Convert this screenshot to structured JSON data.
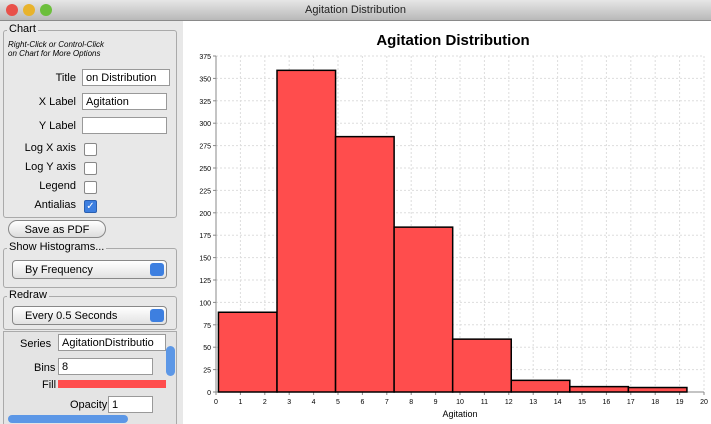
{
  "window": {
    "title": "Agitation Distribution"
  },
  "panel": {
    "chart_group": "Chart",
    "hint": [
      "Right-Click or Control-Click",
      "on Chart for More Options"
    ],
    "fields": [
      {
        "label": "Title",
        "value": "on Distribution"
      },
      {
        "label": "X Label",
        "value": "Agitation"
      },
      {
        "label": "Y Label"
      }
    ],
    "checkboxes": [
      {
        "label": "Log X axis",
        "checked": false
      },
      {
        "label": "Log Y axis",
        "checked": false
      },
      {
        "label": "Legend",
        "checked": false
      },
      {
        "label": "Antialias",
        "checked": true
      }
    ],
    "save_button": "Save as PDF",
    "histograms_group": "Show Histograms...",
    "histograms_choice": "By Frequency",
    "redraw_group": "Redraw",
    "redraw_choice": "Every 0.5 Seconds",
    "series": {
      "label": "Series",
      "name": "AgitationDistributio",
      "bins_label": "Bins",
      "bins": "8",
      "fill_label": "Fill",
      "fill_color": "#ff4d4d",
      "opacity_label": "Opacity",
      "opacity": "1"
    }
  },
  "chart_data": {
    "type": "histogram",
    "title": "Agitation Distribution",
    "xlabel": "Agitation",
    "bins": [
      0.1,
      2.5,
      4.9,
      7.3,
      9.7,
      12.1,
      14.5,
      16.9,
      19.3
    ],
    "values": [
      89,
      359,
      285,
      184,
      59,
      13,
      6,
      5
    ],
    "color": "#ff4d4d",
    "xlim": [
      0,
      20
    ],
    "xticks": [
      0,
      1,
      2,
      3,
      4,
      5,
      6,
      7,
      8,
      9,
      10,
      11,
      12,
      13,
      14,
      15,
      16,
      17,
      18,
      19,
      20
    ],
    "ylim": [
      0,
      375
    ],
    "yticks": [
      0,
      25,
      50,
      75,
      100,
      125,
      150,
      175,
      200,
      225,
      250,
      275,
      300,
      325,
      350,
      375
    ],
    "grid": true
  }
}
